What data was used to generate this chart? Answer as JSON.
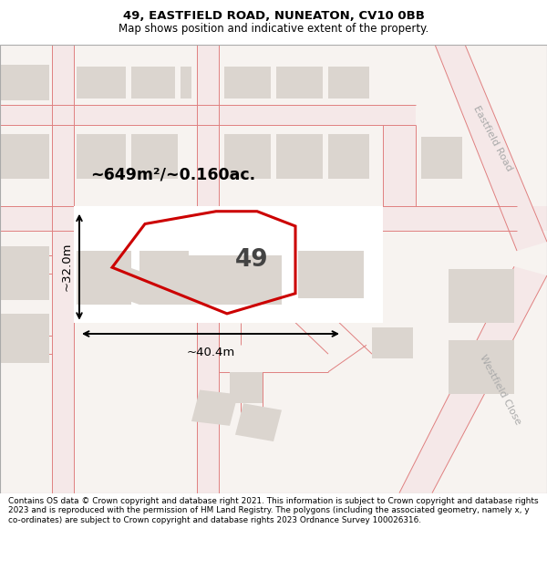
{
  "title": "49, EASTFIELD ROAD, NUNEATON, CV10 0BB",
  "subtitle": "Map shows position and indicative extent of the property.",
  "footer": "Contains OS data © Crown copyright and database right 2021. This information is subject to Crown copyright and database rights 2023 and is reproduced with the permission of HM Land Registry. The polygons (including the associated geometry, namely x, y co-ordinates) are subject to Crown copyright and database rights 2023 Ordnance Survey 100026316.",
  "area_label": "~649m²/~0.160ac.",
  "dim_width_label": "~40.4m",
  "dim_height_label": "~32.0m",
  "eastfield_road_label": "Eastfield Road",
  "westfield_close_label": "Westfield Close",
  "map_bg": "#f7f3f0",
  "road_fill": "#f5e8e8",
  "road_line": "#e08080",
  "bld_color": "#dbd5cf",
  "white_zone": "#ffffff",
  "title_size": 9.5,
  "subtitle_size": 8.5,
  "footer_size": 6.4
}
